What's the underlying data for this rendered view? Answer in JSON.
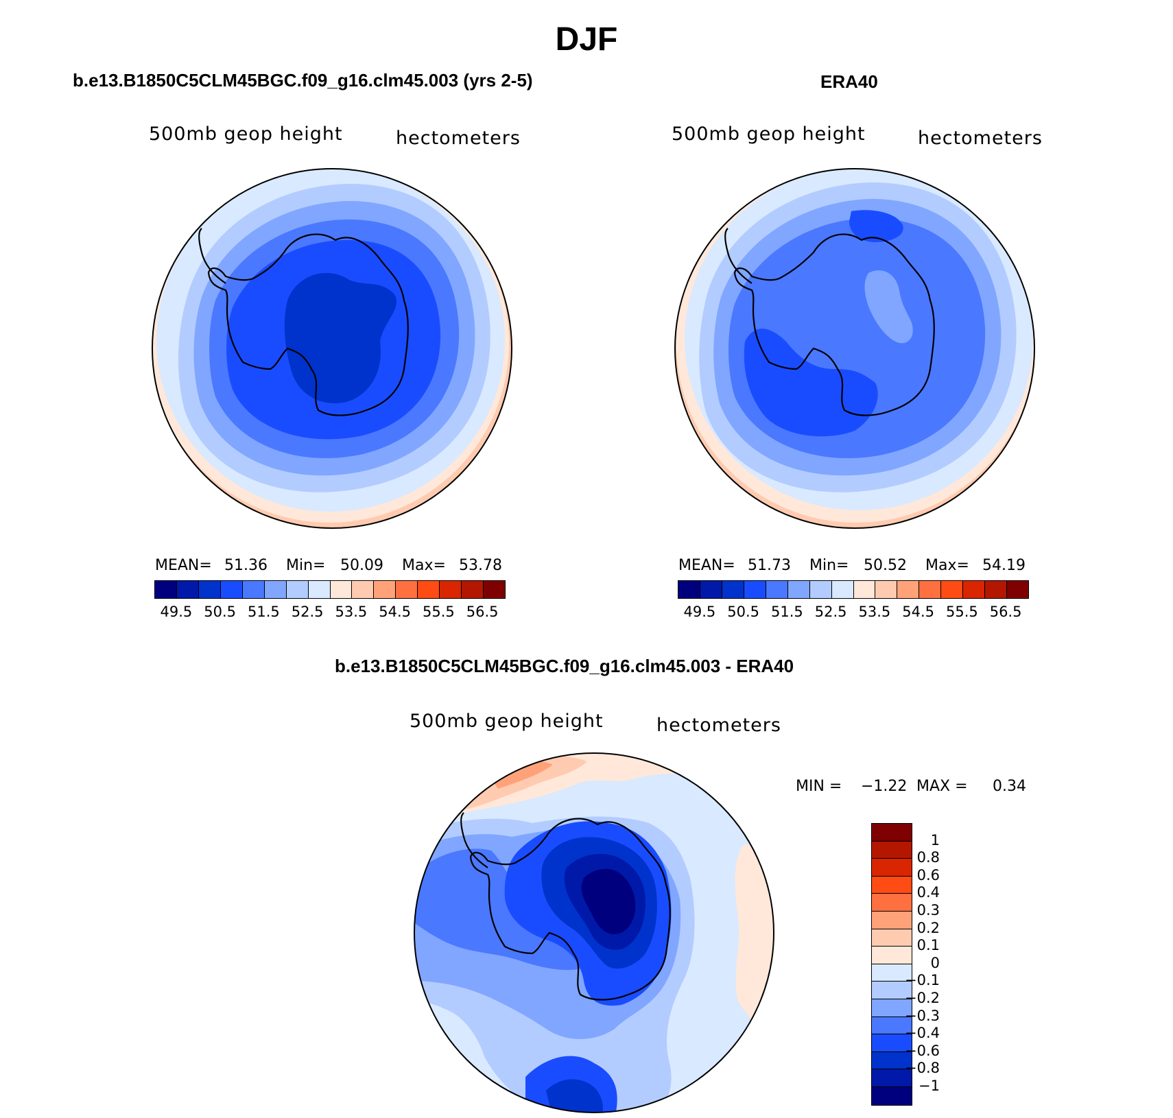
{
  "title": "DJF",
  "panels": [
    {
      "title": "b.e13.B1850C5CLM45BGC.f09_g16.clm45.003 (yrs 2-5)",
      "left_label": "500mb geop height",
      "right_label": "hectometers",
      "stats": {
        "mean_label": "MEAN=",
        "mean": "51.36",
        "min_label": "Min=",
        "min": "50.09",
        "max_label": "Max=",
        "max": "53.78"
      }
    },
    {
      "title": "ERA40",
      "left_label": "500mb geop height",
      "right_label": "hectometers",
      "stats": {
        "mean_label": "MEAN=",
        "mean": "51.73",
        "min_label": "Min=",
        "min": "50.52",
        "max_label": "Max=",
        "max": "54.19"
      }
    }
  ],
  "abs_colorbar": {
    "colors": [
      "#00007f",
      "#0019a8",
      "#0033cc",
      "#1a4cff",
      "#4a78ff",
      "#80a6ff",
      "#b3ccff",
      "#d9e9ff",
      "#ffe8d9",
      "#ffcbb0",
      "#ffa27a",
      "#ff7040",
      "#ff4b14",
      "#d92600",
      "#b31700",
      "#7f0000"
    ],
    "labels": [
      "49.5",
      "50.5",
      "51.5",
      "52.5",
      "53.5",
      "54.5",
      "55.5",
      "56.5"
    ]
  },
  "diff_panel": {
    "title": "b.e13.B1850C5CLM45BGC.f09_g16.clm45.003 - ERA40",
    "left_label": "500mb geop height",
    "right_label": "hectometers",
    "stats": {
      "min_label": "MIN =",
      "min": "−1.22",
      "max_label": "MAX =",
      "max": "0.34"
    }
  },
  "diff_colorbar": {
    "colors_top_to_bottom": [
      "#7f0000",
      "#b31700",
      "#d92600",
      "#ff4b14",
      "#ff7040",
      "#ffa27a",
      "#ffcbb0",
      "#ffe8d9",
      "#d9e9ff",
      "#b3ccff",
      "#80a6ff",
      "#4a78ff",
      "#1a4cff",
      "#0033cc",
      "#0019a8",
      "#00007f"
    ],
    "labels_top_to_bottom": [
      "1",
      "0.8",
      "0.6",
      "0.4",
      "0.3",
      "0.2",
      "0.1",
      "0",
      "−0.1",
      "−0.2",
      "−0.3",
      "−0.4",
      "−0.6",
      "−0.8",
      "−1"
    ]
  }
}
